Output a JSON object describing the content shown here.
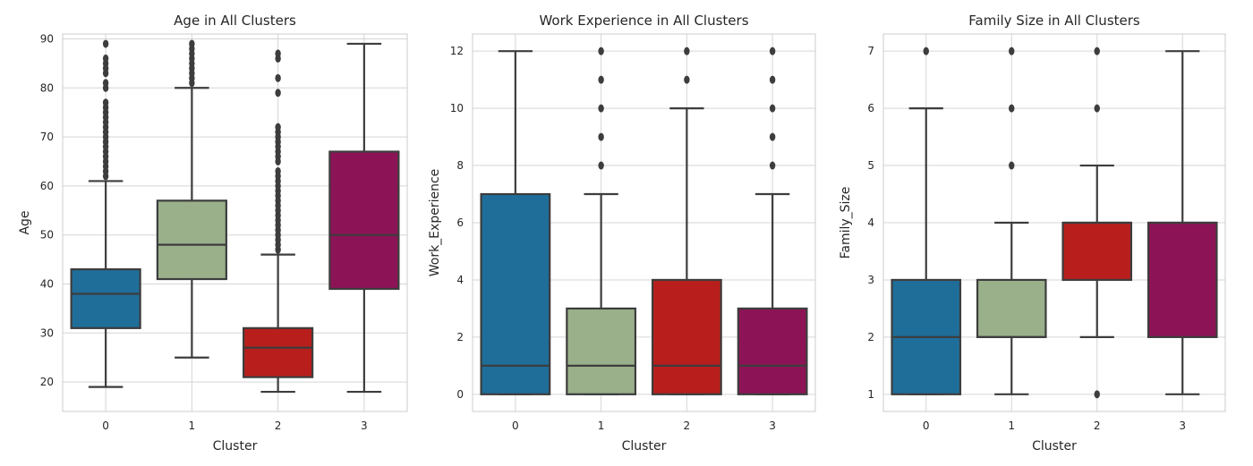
{
  "chart_data": [
    {
      "type": "boxplot",
      "title": "Age in All Clusters",
      "xlabel": "Cluster",
      "ylabel": "Age",
      "categories": [
        "0",
        "1",
        "2",
        "3"
      ],
      "ylim": [
        14,
        91
      ],
      "yticks": [
        20,
        30,
        40,
        50,
        60,
        70,
        80,
        90
      ],
      "grid": true,
      "boxes": [
        {
          "category": "0",
          "color": "#1f6e9a",
          "whisker_low": 19,
          "q1": 31,
          "median": 38,
          "q3": 43,
          "whisker_high": 61,
          "outliers": [
            62,
            63,
            64,
            65,
            66,
            67,
            68,
            69,
            70,
            71,
            72,
            73,
            74,
            75,
            76,
            77,
            80,
            81,
            83,
            84,
            85,
            86,
            89
          ]
        },
        {
          "category": "1",
          "color": "#99b08a",
          "whisker_low": 25,
          "q1": 41,
          "median": 48,
          "q3": 57,
          "whisker_high": 80,
          "outliers": [
            81,
            82,
            83,
            84,
            85,
            86,
            87,
            88,
            89
          ]
        },
        {
          "category": "2",
          "color": "#b81f1c",
          "whisker_low": 18,
          "q1": 21,
          "median": 27,
          "q3": 31,
          "whisker_high": 46,
          "outliers": [
            47,
            48,
            49,
            50,
            51,
            52,
            53,
            54,
            55,
            56,
            57,
            58,
            59,
            60,
            61,
            62,
            63,
            65,
            66,
            67,
            68,
            69,
            70,
            71,
            72,
            79,
            82,
            86,
            87
          ]
        },
        {
          "category": "3",
          "color": "#8c1456",
          "whisker_low": 18,
          "q1": 39,
          "median": 50,
          "q3": 67,
          "whisker_high": 89,
          "outliers": []
        }
      ]
    },
    {
      "type": "boxplot",
      "title": "Work Experience in All Clusters",
      "xlabel": "Cluster",
      "ylabel": "Work_Experience",
      "categories": [
        "0",
        "1",
        "2",
        "3"
      ],
      "ylim": [
        -0.6,
        12.6
      ],
      "yticks": [
        0,
        2,
        4,
        6,
        8,
        10,
        12
      ],
      "grid": true,
      "boxes": [
        {
          "category": "0",
          "color": "#1f6e9a",
          "whisker_low": 0,
          "q1": 0,
          "median": 1,
          "q3": 7,
          "whisker_high": 12,
          "outliers": []
        },
        {
          "category": "1",
          "color": "#99b08a",
          "whisker_low": 0,
          "q1": 0,
          "median": 1,
          "q3": 3,
          "whisker_high": 7,
          "outliers": [
            8,
            9,
            10,
            11,
            12
          ]
        },
        {
          "category": "2",
          "color": "#b81f1c",
          "whisker_low": 0,
          "q1": 0,
          "median": 1,
          "q3": 4,
          "whisker_high": 10,
          "outliers": [
            11,
            12
          ]
        },
        {
          "category": "3",
          "color": "#8c1456",
          "whisker_low": 0,
          "q1": 0,
          "median": 1,
          "q3": 3,
          "whisker_high": 7,
          "outliers": [
            8,
            9,
            10,
            11,
            12
          ]
        }
      ]
    },
    {
      "type": "boxplot",
      "title": "Family Size in All Clusters",
      "xlabel": "Cluster",
      "ylabel": "Family_Size",
      "categories": [
        "0",
        "1",
        "2",
        "3"
      ],
      "ylim": [
        0.7,
        7.3
      ],
      "yticks": [
        1,
        2,
        3,
        4,
        5,
        6,
        7
      ],
      "grid": true,
      "boxes": [
        {
          "category": "0",
          "color": "#1f6e9a",
          "whisker_low": 1,
          "q1": 1,
          "median": 2,
          "q3": 3,
          "whisker_high": 6,
          "outliers": [
            7
          ]
        },
        {
          "category": "1",
          "color": "#99b08a",
          "whisker_low": 1,
          "q1": 2,
          "median": 2,
          "q3": 3,
          "whisker_high": 4,
          "outliers": [
            5,
            6,
            7
          ]
        },
        {
          "category": "2",
          "color": "#b81f1c",
          "whisker_low": 2,
          "q1": 3,
          "median": 4,
          "q3": 4,
          "whisker_high": 5,
          "outliers": [
            1,
            6,
            7
          ]
        },
        {
          "category": "3",
          "color": "#8c1456",
          "whisker_low": 1,
          "q1": 2,
          "median": 4,
          "q3": 4,
          "whisker_high": 7,
          "outliers": []
        }
      ]
    }
  ]
}
